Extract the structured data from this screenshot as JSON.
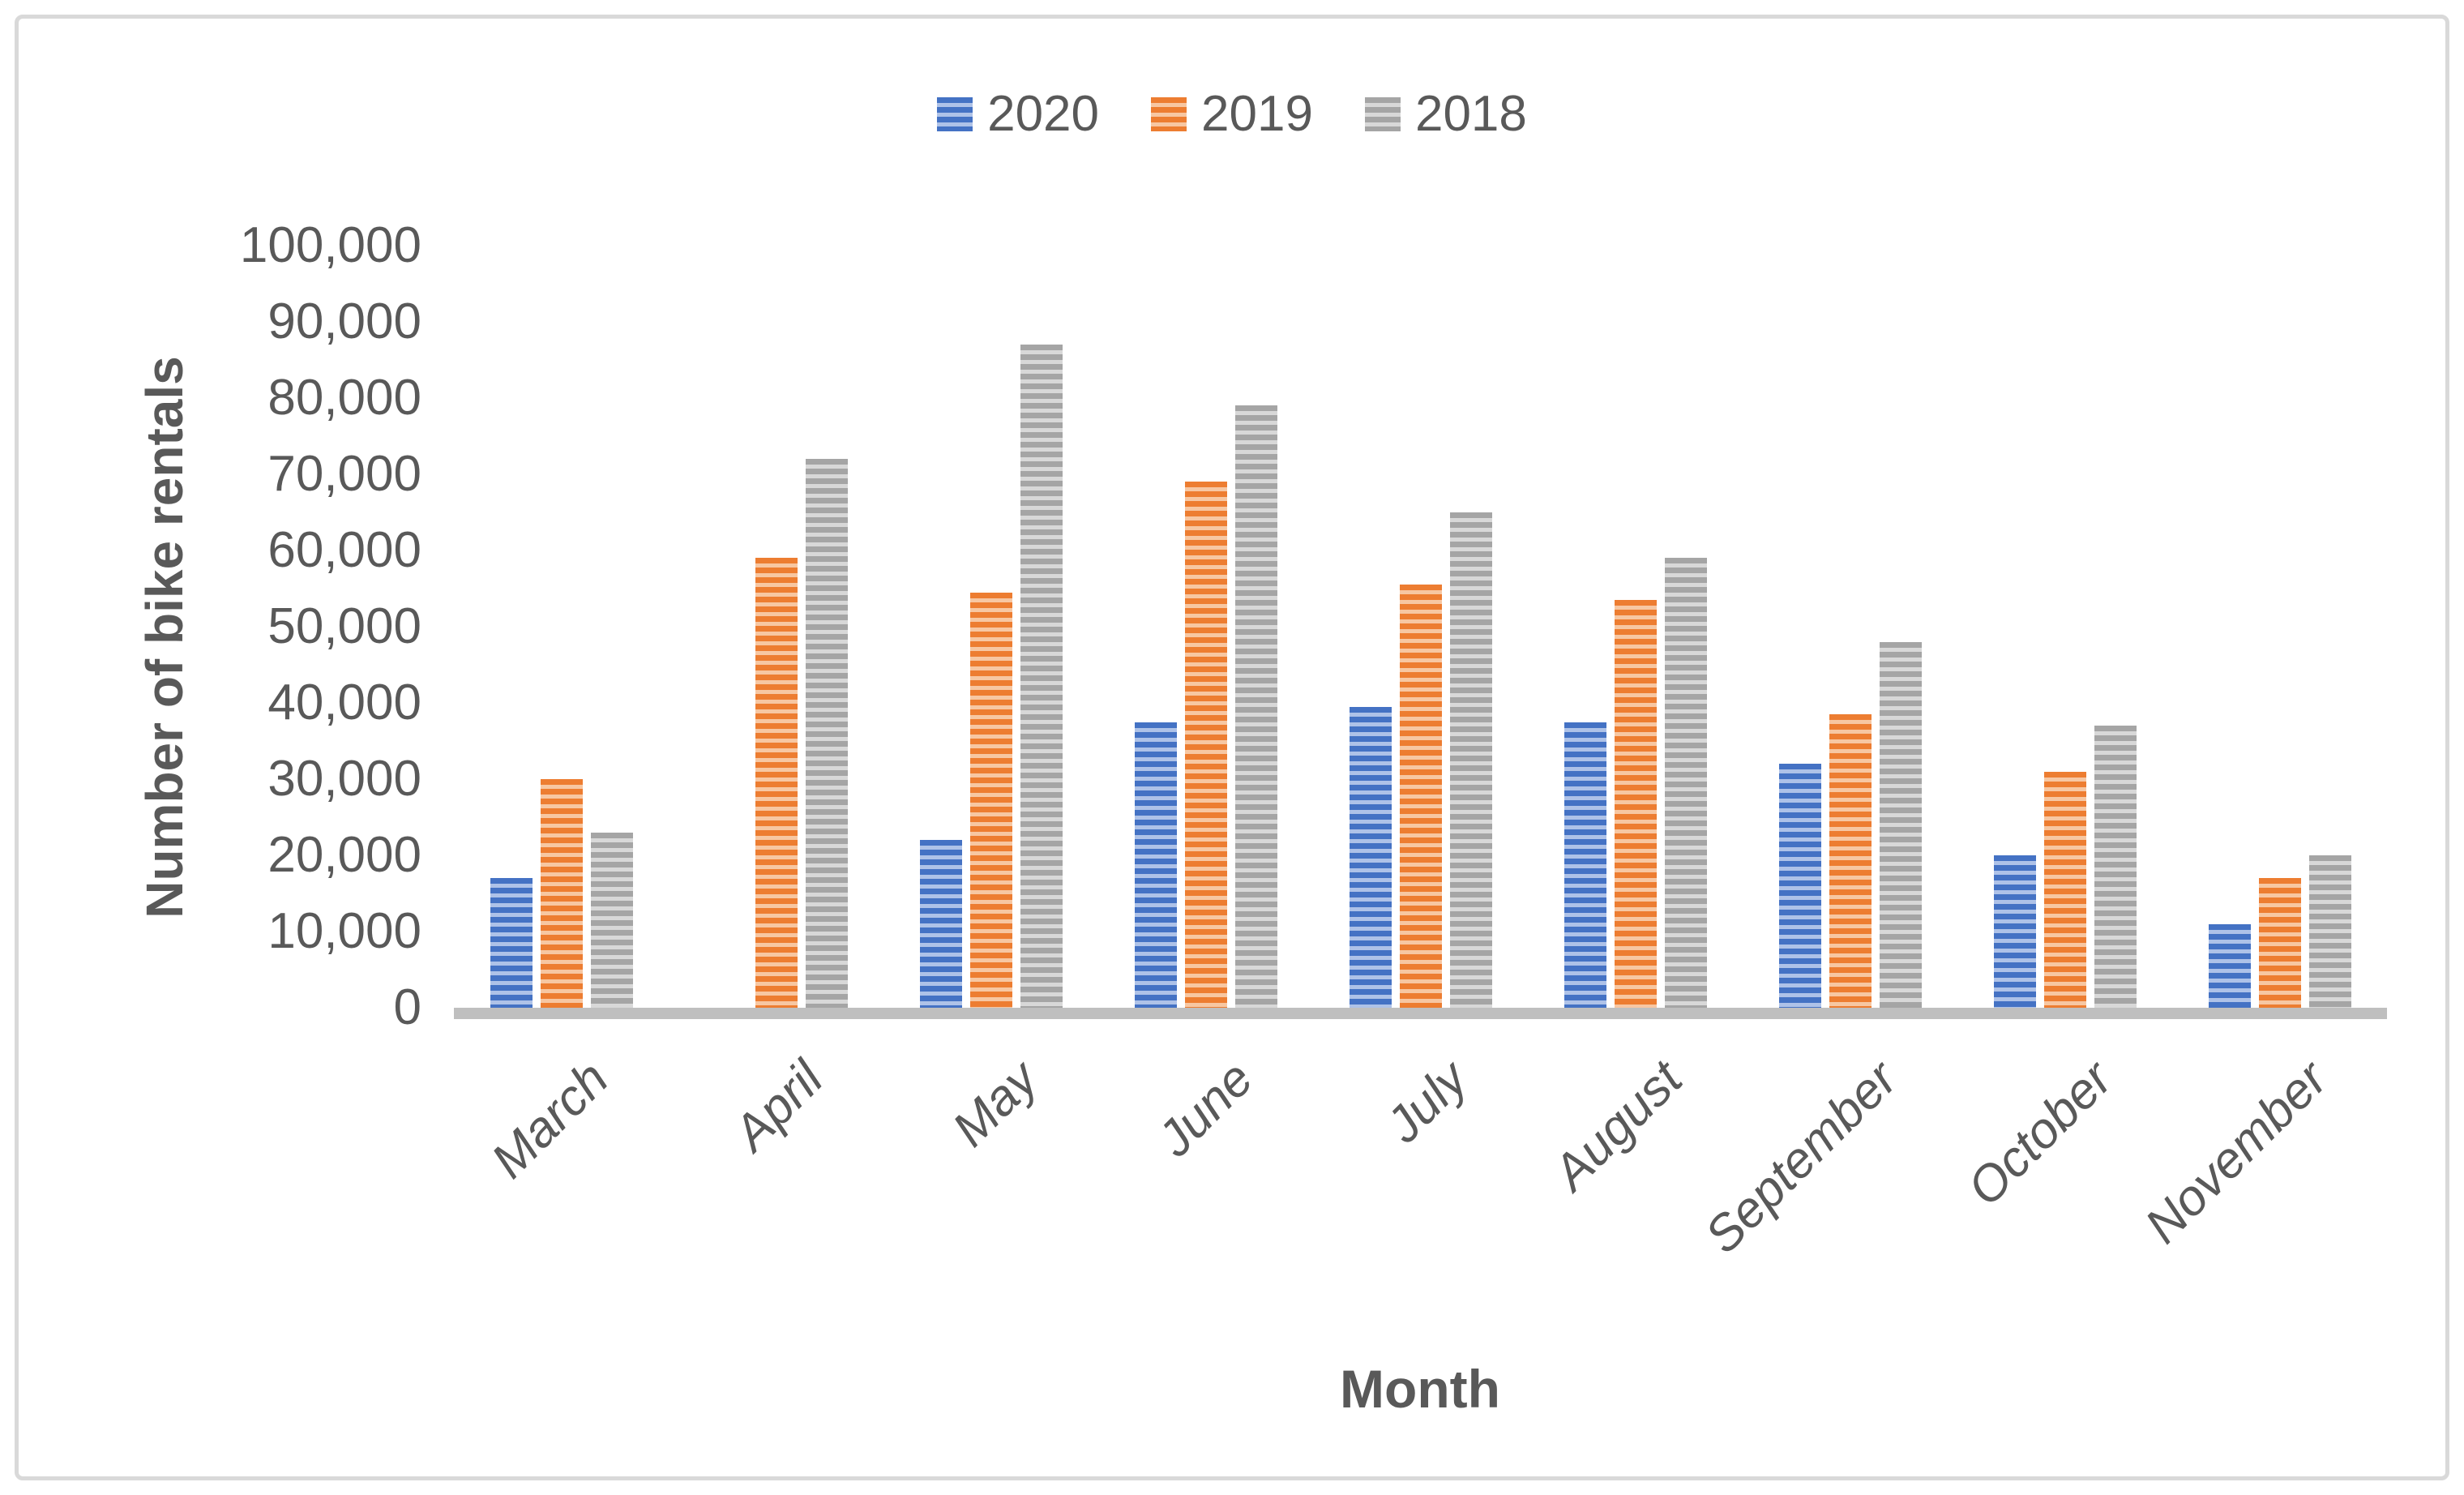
{
  "chart_data": {
    "type": "bar",
    "title": "",
    "categories": [
      "March",
      "April",
      "May",
      "June",
      "July",
      "August",
      "September",
      "October",
      "November"
    ],
    "series": [
      {
        "name": "2020",
        "values": [
          17000,
          0,
          22000,
          37500,
          39500,
          37500,
          32000,
          20000,
          11000
        ]
      },
      {
        "name": "2019",
        "values": [
          30000,
          59000,
          54500,
          69000,
          55500,
          53500,
          38500,
          31000,
          17000
        ]
      },
      {
        "name": "2018",
        "values": [
          23000,
          72000,
          87000,
          79000,
          65000,
          59000,
          48000,
          37000,
          20000
        ]
      }
    ],
    "xlabel": "Month",
    "ylabel": "Number of bike rentals",
    "ylim": [
      0,
      100000
    ],
    "ytick_step": 10000,
    "ytick_labels": [
      "0",
      "10,000",
      "20,000",
      "30,000",
      "40,000",
      "50,000",
      "60,000",
      "70,000",
      "80,000",
      "90,000",
      "100,000"
    ],
    "grid": false,
    "legend_position": "top",
    "bar_pattern": "horizontal-stripes"
  },
  "colors": {
    "series": [
      {
        "name": "2020",
        "dark": "#4472C4",
        "light": "#AEC2E8"
      },
      {
        "name": "2019",
        "dark": "#ED7D31",
        "light": "#F7C7A2"
      },
      {
        "name": "2018",
        "dark": "#A5A5A5",
        "light": "#D8D8D8"
      }
    ],
    "text": "#595959",
    "axis_line": "#BFBFBF",
    "border": "#D9D9D9",
    "background": "#FFFFFF"
  }
}
